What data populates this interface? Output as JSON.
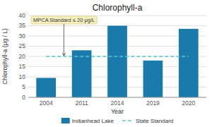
{
  "chart_data": {
    "type": "bar",
    "title": "Chlorophyll-a",
    "xlabel": "Year",
    "ylabel": "Chlorophyll-a (μg / L)",
    "categories": [
      "2004",
      "2011",
      "2014",
      "2019",
      "2020"
    ],
    "series": [
      {
        "name": "Indianhead Lake",
        "color": "#1a7aab",
        "values": [
          9.5,
          23.0,
          35.0,
          18.0,
          33.5
        ]
      },
      {
        "name": "State Standard",
        "type": "line",
        "line_style": "dashed",
        "color": "#5bc8d0",
        "values": [
          20,
          20,
          20,
          20,
          20
        ]
      }
    ],
    "ylim": [
      0,
      40
    ],
    "yticks": [
      0,
      5,
      10,
      15,
      20,
      25,
      30,
      35,
      40
    ],
    "grid": true,
    "legend": "bottom",
    "annotations": [
      {
        "text": "MPCA Standard ≤ 20 μg/L"
      }
    ]
  }
}
